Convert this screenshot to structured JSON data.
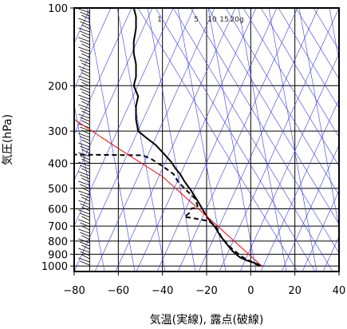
{
  "chart_data": {
    "type": "line",
    "title": "",
    "xlabel": "気温(実線), 露点(破線)",
    "ylabel": "気圧(hPa)",
    "xlim": [
      -80,
      40
    ],
    "ylim": [
      1050,
      100
    ],
    "y_scale": "log",
    "x_ticks": [
      -80,
      -60,
      -40,
      -20,
      0,
      20,
      40
    ],
    "x_tick_labels": [
      "−80",
      "−60",
      "−40",
      "−20",
      "0",
      "20",
      "40"
    ],
    "y_ticks": [
      1000,
      900,
      800,
      700,
      600,
      500,
      400,
      300,
      200,
      100
    ],
    "y_tick_labels": [
      "1000",
      "900",
      "800",
      "700",
      "600",
      "500",
      "400",
      "300",
      "200",
      "100"
    ],
    "mixing_ratio_labels": [
      "1",
      "5",
      "10",
      "15",
      "20g"
    ],
    "grid": true,
    "series": [
      {
        "style": "solid",
        "color": "#000000",
        "points": [
          {
            "x": 5,
            "p": 1000
          },
          {
            "x": 2,
            "p": 975
          },
          {
            "x": -2,
            "p": 950
          },
          {
            "x": -5,
            "p": 925
          },
          {
            "x": -8,
            "p": 880
          },
          {
            "x": -11,
            "p": 820
          },
          {
            "x": -14,
            "p": 760
          },
          {
            "x": -16,
            "p": 710
          },
          {
            "x": -19,
            "p": 660
          },
          {
            "x": -21,
            "p": 620
          },
          {
            "x": -24,
            "p": 560
          },
          {
            "x": -27,
            "p": 510
          },
          {
            "x": -30,
            "p": 470
          },
          {
            "x": -32,
            "p": 440
          },
          {
            "x": -34,
            "p": 420
          },
          {
            "x": -36,
            "p": 395
          },
          {
            "x": -39,
            "p": 370
          },
          {
            "x": -43,
            "p": 340
          },
          {
            "x": -48,
            "p": 315
          },
          {
            "x": -51,
            "p": 300
          },
          {
            "x": -52,
            "p": 270
          },
          {
            "x": -52,
            "p": 240
          },
          {
            "x": -51,
            "p": 220
          },
          {
            "x": -53,
            "p": 200
          },
          {
            "x": -52,
            "p": 185
          },
          {
            "x": -52,
            "p": 165
          },
          {
            "x": -53,
            "p": 150
          },
          {
            "x": -53,
            "p": 135
          },
          {
            "x": -52,
            "p": 120
          },
          {
            "x": -52,
            "p": 108
          },
          {
            "x": -53,
            "p": 100
          }
        ]
      },
      {
        "style": "dashed",
        "color": "#000000",
        "points": [
          {
            "x": 4,
            "p": 1000
          },
          {
            "x": 0,
            "p": 960
          },
          {
            "x": -4,
            "p": 920
          },
          {
            "x": -9,
            "p": 850
          },
          {
            "x": -13,
            "p": 780
          },
          {
            "x": -16,
            "p": 700
          },
          {
            "x": -19,
            "p": 670
          },
          {
            "x": -27,
            "p": 650
          },
          {
            "x": -30,
            "p": 645
          },
          {
            "x": -28,
            "p": 625
          },
          {
            "x": -27,
            "p": 600
          },
          {
            "x": -24,
            "p": 590
          },
          {
            "x": -25,
            "p": 550
          },
          {
            "x": -28,
            "p": 520
          },
          {
            "x": -30,
            "p": 500
          },
          {
            "x": -33,
            "p": 470
          },
          {
            "x": -35,
            "p": 440
          },
          {
            "x": -40,
            "p": 410
          },
          {
            "x": -45,
            "p": 385
          },
          {
            "x": -49,
            "p": 372
          },
          {
            "x": -80,
            "p": 370
          }
        ]
      },
      {
        "style": "solid",
        "color": "#ff0000",
        "points": [
          {
            "x": 5,
            "p": 1000
          },
          {
            "x": -15,
            "p": 700
          },
          {
            "x": -40,
            "p": 450
          },
          {
            "x": -60,
            "p": 350
          },
          {
            "x": -80,
            "p": 270
          }
        ]
      }
    ],
    "wind_barbs_x": -73,
    "colors": {
      "grid": "#000000",
      "background_lines": "#3a3adf",
      "temperature": "#000000",
      "dewpoint": "#000000",
      "parcel": "#ff0000",
      "barbs": "#000000"
    }
  }
}
